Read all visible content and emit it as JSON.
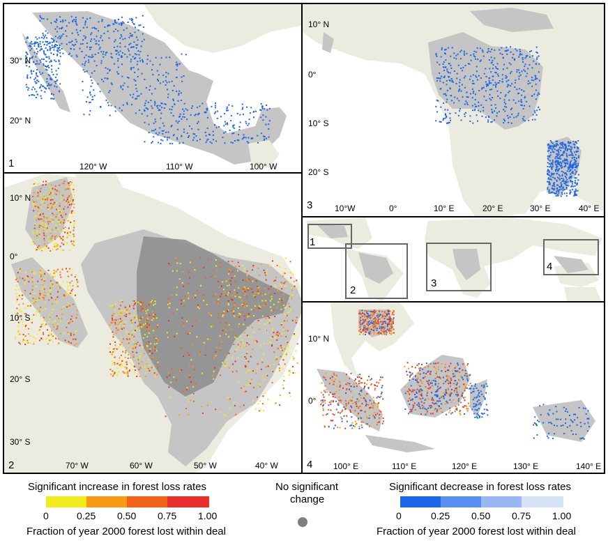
{
  "colors": {
    "ocean": "#ffffff",
    "land": "#ecebe0",
    "deal_area": "#c5c5c5",
    "dense_deal": "#8c8c8c",
    "decrease": "#1a66e6",
    "increase_025": "#f2ec1c",
    "increase_050": "#f59c14",
    "increase_075": "#f26319",
    "increase_100": "#e8302d",
    "no_change": "#7f7f7f"
  },
  "panels": {
    "p1": {
      "number": "1",
      "lat_labels": [
        "30° N",
        "20° N"
      ],
      "lon_labels": [
        "120° W",
        "110° W",
        "100° W"
      ]
    },
    "p2": {
      "number": "2",
      "lat_labels": [
        "10° N",
        "0°",
        "10° S",
        "20° S",
        "30° S"
      ],
      "lon_labels": [
        "70° W",
        "60° W",
        "50° W",
        "40° W"
      ]
    },
    "p3": {
      "number": "3",
      "lat_labels": [
        "10° N",
        "0°",
        "10° S",
        "20° S"
      ],
      "lon_labels": [
        "10°W",
        "0°",
        "10° E",
        "20° E",
        "30° E",
        "40° E"
      ]
    },
    "overview": {
      "boxes": [
        "1",
        "2",
        "3",
        "4"
      ]
    },
    "p4": {
      "number": "4",
      "lat_labels": [
        "10° N",
        "0°"
      ],
      "lon_labels": [
        "100° E",
        "110° E",
        "120° E",
        "130° E",
        "140° E"
      ]
    }
  },
  "legend": {
    "increase": {
      "title": "Significant increase in forest loss rates",
      "ticks": [
        "0",
        "0.25",
        "0.50",
        "0.75",
        "1.00"
      ],
      "footer": "Fraction of year 2000 forest lost within deal"
    },
    "no_change": {
      "title_line1": "No significant",
      "title_line2": "change"
    },
    "decrease": {
      "title": "Significant decrease in forest loss rates",
      "ticks": [
        "0",
        "0.25",
        "0.50",
        "0.75",
        "1.00"
      ],
      "footer": "Fraction of year 2000 forest lost within deal"
    }
  }
}
